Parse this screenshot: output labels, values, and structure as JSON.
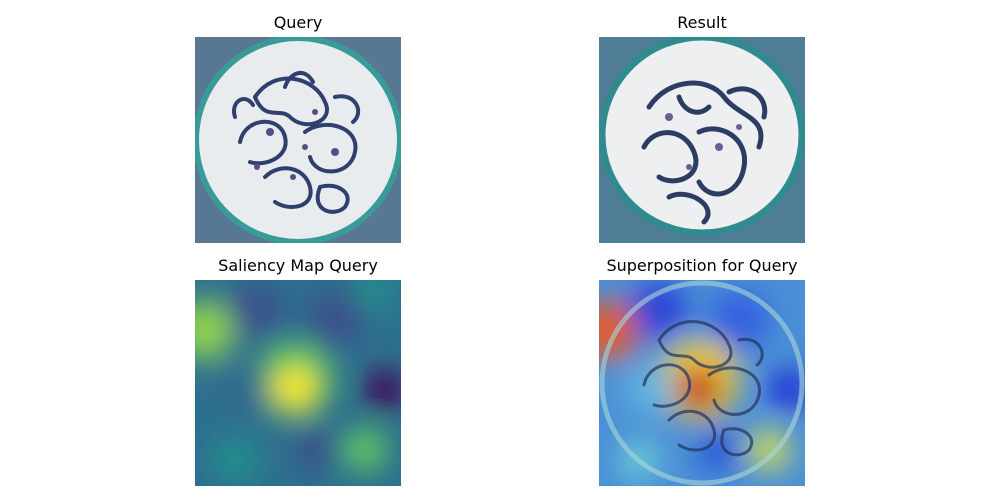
{
  "panels": {
    "query": {
      "title": "Query"
    },
    "result": {
      "title": "Result"
    },
    "saliency": {
      "title": "Saliency Map Query"
    },
    "superposition": {
      "title": "Superposition for Query"
    }
  },
  "colors": {
    "background": "#ffffff",
    "stain_teal": "#3a9a98",
    "stain_purple": "#5a3f7a",
    "stain_dark_blue": "#2f3f6e",
    "tissue_white": "#eef0f2",
    "viridis_low": "#440154",
    "viridis_mid": "#21918c",
    "viridis_high": "#fde725",
    "jet_low": "#1a2bd6",
    "jet_high": "#c0181b"
  },
  "image_content": {
    "query": "histology-glomerulus-image",
    "result": "histology-glomerulus-image",
    "saliency": "viridis-saliency-heatmap",
    "superposition": "jet-heatmap-overlay-on-histology"
  }
}
